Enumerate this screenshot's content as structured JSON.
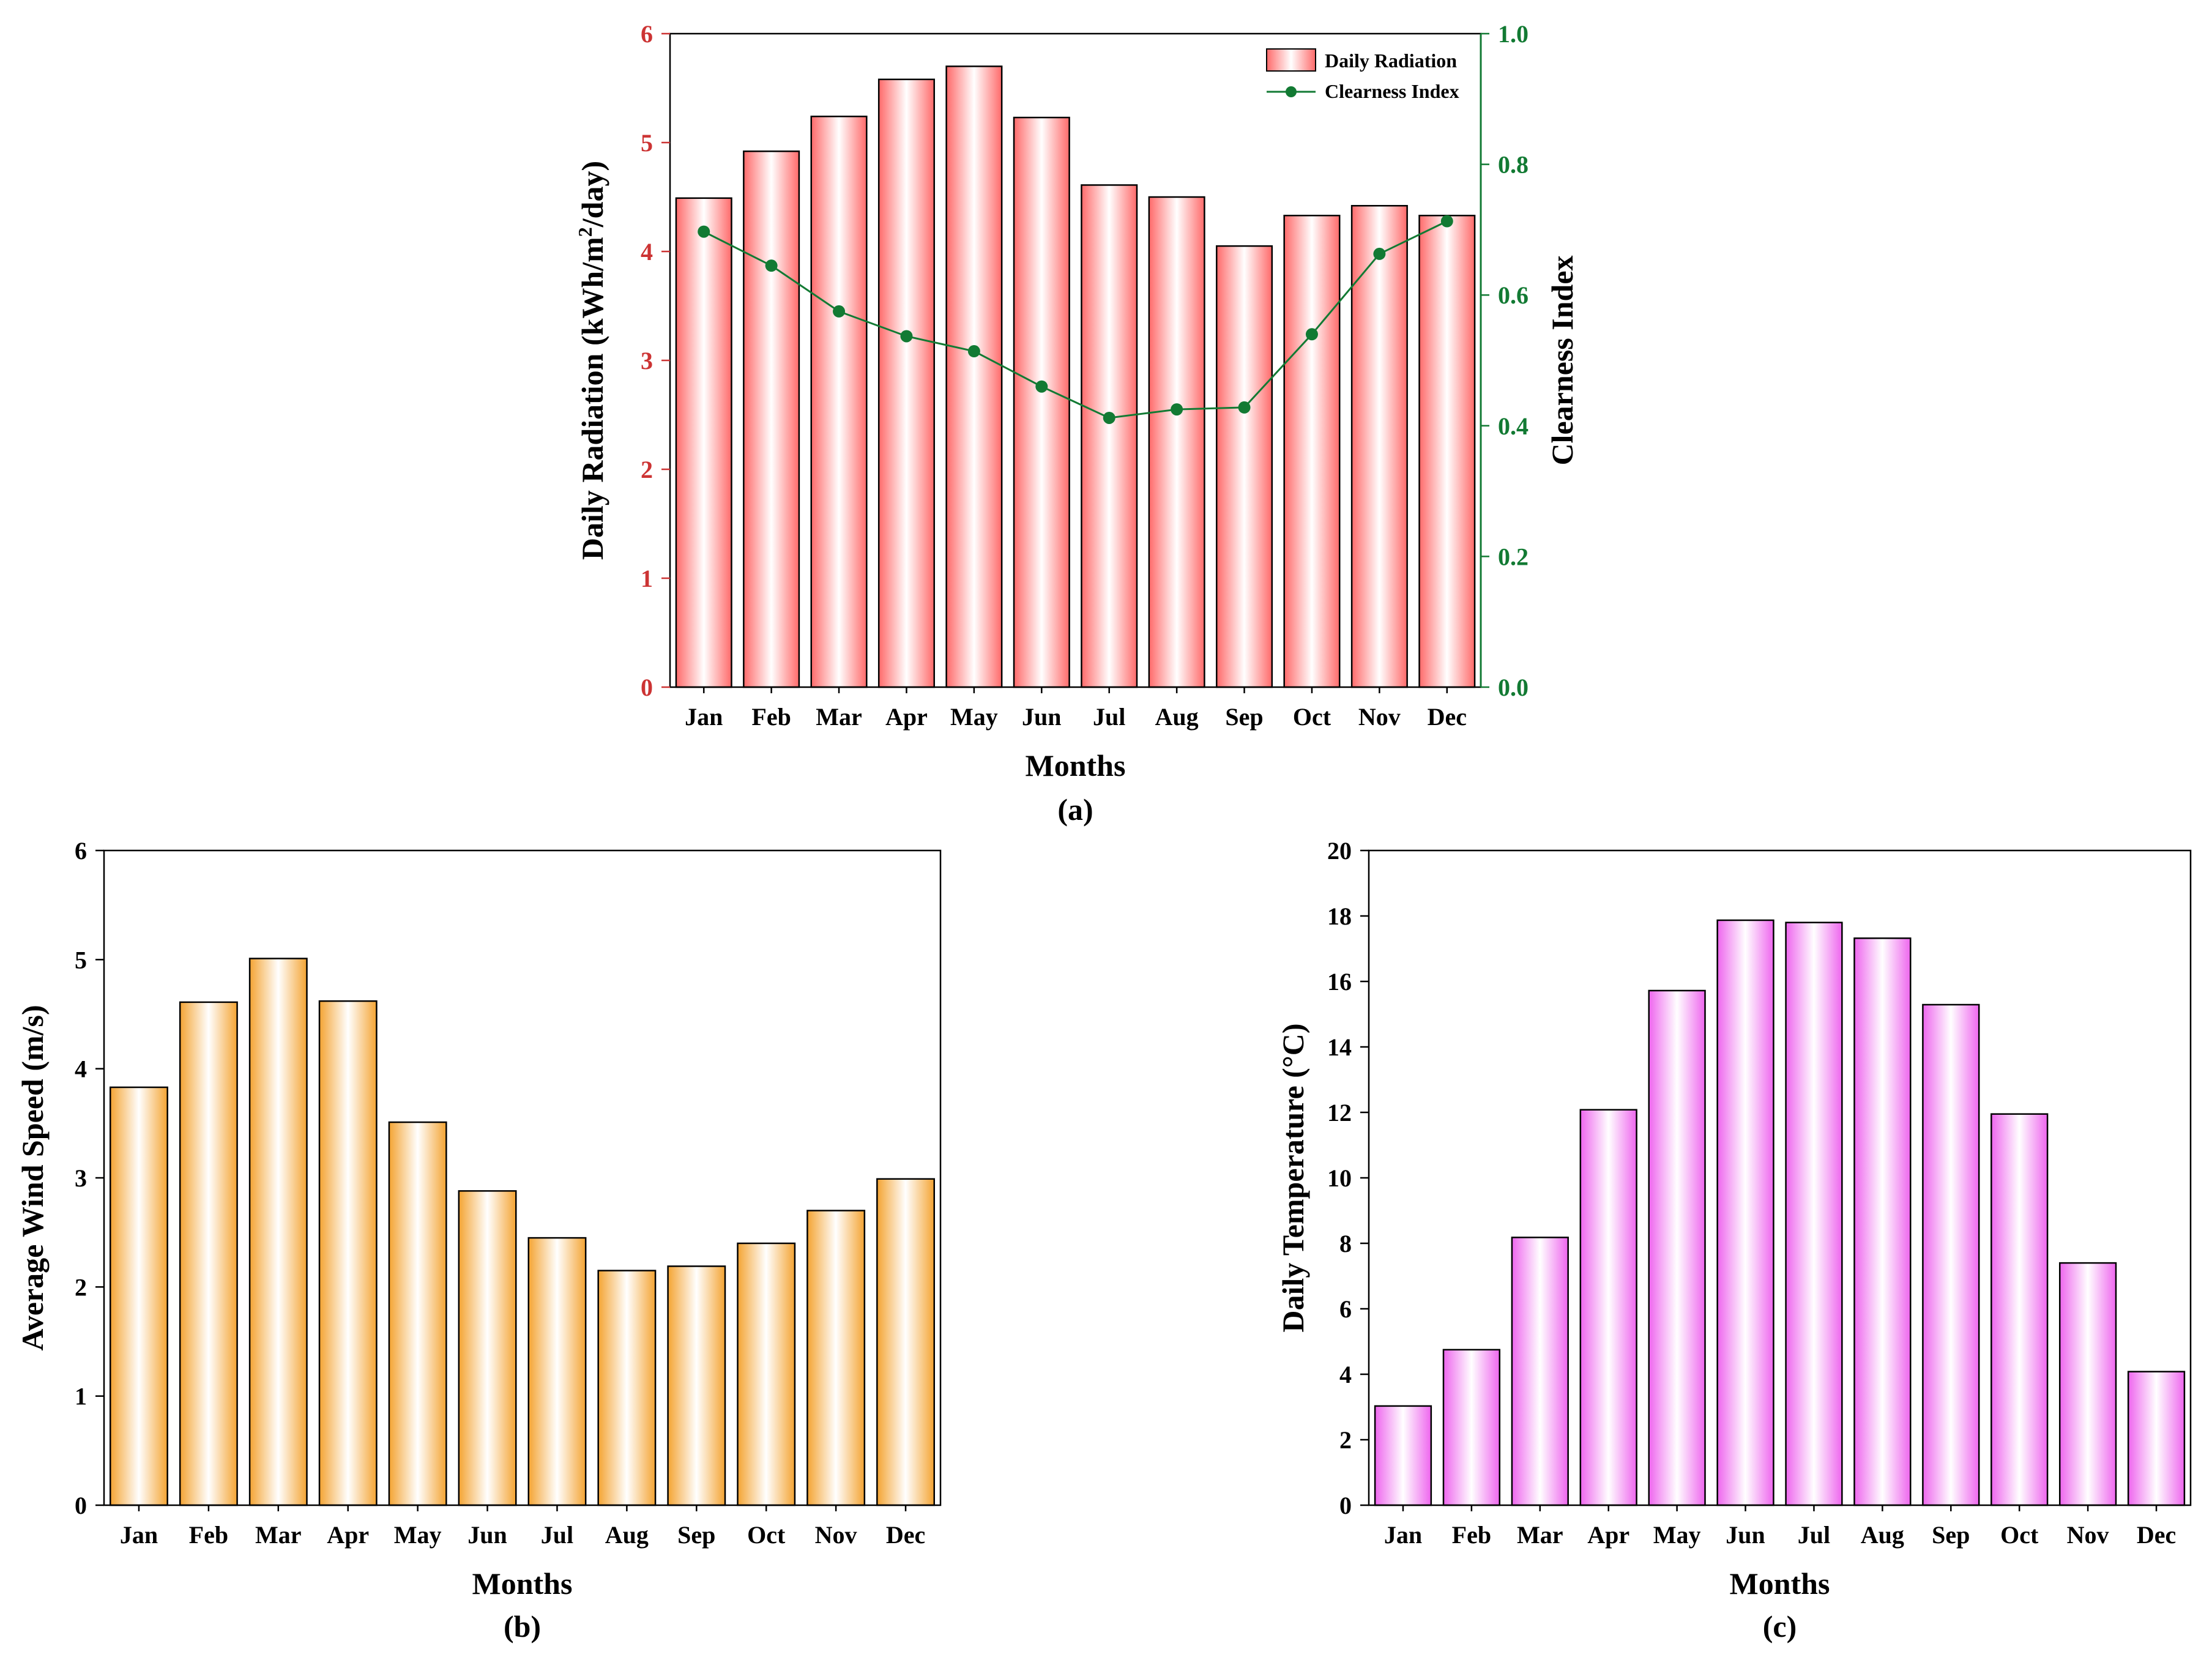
{
  "colors": {
    "radiation_axis": "#cc3333",
    "clearness": "#127a33",
    "radiation_bar_edge": "#ff6a6a",
    "wind_bar_edge": "#f4a433",
    "temp_bar_edge": "#ee66ee"
  },
  "chart_data": [
    {
      "id": "a",
      "type": "bar",
      "panel_label": "(a)",
      "categories": [
        "Jan",
        "Feb",
        "Mar",
        "Apr",
        "May",
        "Jun",
        "Jul",
        "Aug",
        "Sep",
        "Oct",
        "Nov",
        "Dec"
      ],
      "series": [
        {
          "name": "Daily Radiation",
          "type": "bar",
          "axis": "left",
          "values": [
            4.49,
            4.92,
            5.24,
            5.58,
            5.7,
            5.23,
            4.61,
            4.5,
            4.05,
            4.33,
            4.42,
            4.33
          ]
        },
        {
          "name": "Clearness Index",
          "type": "line",
          "axis": "right",
          "values": [
            0.697,
            0.645,
            0.575,
            0.537,
            0.514,
            0.46,
            0.412,
            0.425,
            0.428,
            0.54,
            0.663,
            0.713
          ]
        }
      ],
      "xlabel": "Months",
      "ylabel": "Daily Radiation (kWh/m",
      "ylabel_sup": "2",
      "ylabel_tail": "/day)",
      "ylim": [
        0,
        6
      ],
      "yticks": [
        "0",
        "1",
        "2",
        "3",
        "4",
        "5",
        "6"
      ],
      "y2label": "Clearness Index",
      "y2lim": [
        0,
        1.0
      ],
      "y2ticks": [
        "0.0",
        "0.2",
        "0.4",
        "0.6",
        "0.8",
        "1.0"
      ],
      "legend": [
        "Daily Radiation",
        "Clearness Index"
      ],
      "legend_position": "top-right"
    },
    {
      "id": "b",
      "type": "bar",
      "panel_label": "(b)",
      "categories": [
        "Jan",
        "Feb",
        "Mar",
        "Apr",
        "May",
        "Jun",
        "Jul",
        "Aug",
        "Sep",
        "Oct",
        "Nov",
        "Dec"
      ],
      "values": [
        3.83,
        4.61,
        5.01,
        4.62,
        3.51,
        2.88,
        2.45,
        2.15,
        2.19,
        2.4,
        2.7,
        2.99
      ],
      "xlabel": "Months",
      "ylabel": "Average Wind Speed (m/s)",
      "ylim": [
        0,
        6
      ],
      "yticks": [
        "0",
        "1",
        "2",
        "3",
        "4",
        "5",
        "6"
      ]
    },
    {
      "id": "c",
      "type": "bar",
      "panel_label": "(c)",
      "categories": [
        "Jan",
        "Feb",
        "Mar",
        "Apr",
        "May",
        "Jun",
        "Jul",
        "Aug",
        "Sep",
        "Oct",
        "Nov",
        "Dec"
      ],
      "values": [
        3.03,
        4.75,
        8.18,
        12.08,
        15.72,
        17.87,
        17.8,
        17.32,
        15.29,
        11.95,
        7.4,
        4.08
      ],
      "xlabel": "Months",
      "ylabel": "Daily Temperature (°C)",
      "ylim": [
        0,
        20
      ],
      "yticks": [
        "0",
        "2",
        "4",
        "6",
        "8",
        "10",
        "12",
        "14",
        "16",
        "18",
        "20"
      ]
    }
  ]
}
